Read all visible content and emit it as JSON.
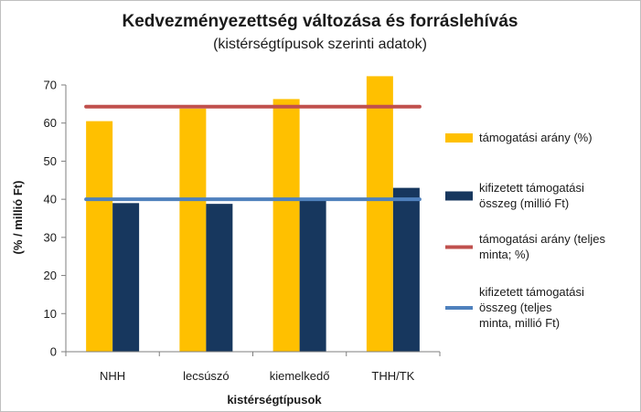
{
  "colors": {
    "bar_primary": "#FFC000",
    "bar_secondary": "#17375E",
    "line_primary": "#C0504D",
    "line_secondary": "#4F81BD",
    "axis": "#7f7f7f",
    "frame": "#bfbfbf"
  },
  "chart_data": {
    "type": "bar",
    "title": "Kedvezményezettség változása és forráslehívás",
    "subtitle": "(kistérségtípusok szerinti adatok)",
    "xlabel": "kistérségtípusok",
    "ylabel": "(% / millió Ft)",
    "ylim": [
      0,
      70
    ],
    "yticks": [
      0,
      10,
      20,
      30,
      40,
      50,
      60,
      70
    ],
    "grid": false,
    "legend_position": "right",
    "categories": [
      "NHH",
      "lecsúszó",
      "kiemelkedő",
      "THH/TK"
    ],
    "series": [
      {
        "name": "támogatási arány (%)",
        "kind": "bar",
        "values": [
          60.5,
          63.8,
          66.3,
          72.3
        ]
      },
      {
        "name": "kifizetett támogatási összeg (millió Ft)",
        "kind": "bar",
        "values": [
          39.0,
          38.8,
          40.0,
          43.0
        ]
      },
      {
        "name": "támogatási arány (teljes minta; %)",
        "kind": "line",
        "values": [
          64.3,
          64.3,
          64.3,
          64.3
        ]
      },
      {
        "name": "kifizetett támogatási összeg (teljes minta, millió Ft)",
        "kind": "line",
        "values": [
          40.0,
          40.0,
          40.0,
          40.0
        ]
      }
    ],
    "legend_lines": [
      [
        "támogatási arány (%)"
      ],
      [
        "kifizetett támogatási",
        "összeg (millió Ft)"
      ],
      [
        "támogatási arány (teljes",
        "minta; %)"
      ],
      [
        "kifizetett támogatási",
        "összeg (teljes",
        "minta, millió Ft)"
      ]
    ]
  }
}
